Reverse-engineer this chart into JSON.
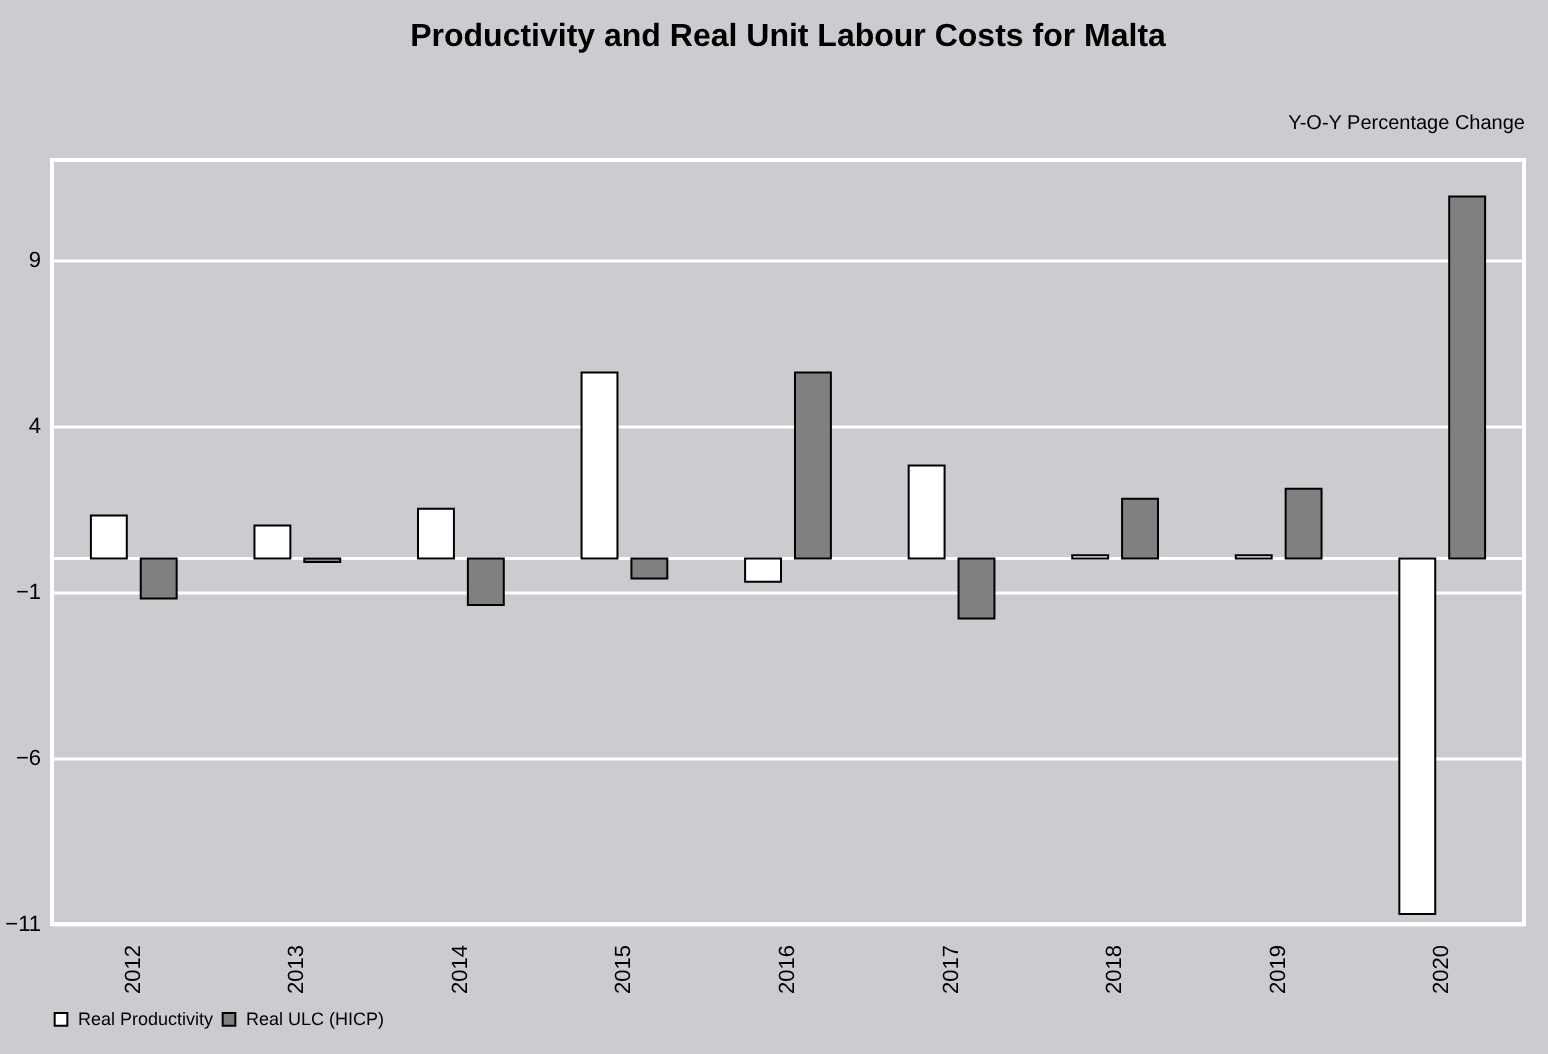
{
  "chart_data": {
    "type": "bar",
    "title": "Productivity and Real Unit Labour Costs for Malta",
    "ylabel": "Y-O-Y Percentage Change",
    "categories": [
      "2012",
      "2013",
      "2014",
      "2015",
      "2016",
      "2017",
      "2018",
      "2019",
      "2020"
    ],
    "series": [
      {
        "name": "Real Productivity",
        "color": "#ffffff",
        "values": [
          1.3,
          1.0,
          1.5,
          5.6,
          -0.7,
          2.8,
          0.1,
          0.1,
          -10.7
        ]
      },
      {
        "name": "Real ULC (HICP)",
        "color": "#808080",
        "values": [
          -1.2,
          -0.1,
          -1.4,
          -0.6,
          5.6,
          -1.8,
          1.8,
          2.1,
          10.9
        ]
      }
    ],
    "ylim": [
      -11,
      12
    ],
    "yticks": [
      -11,
      -6,
      -1,
      4,
      9
    ],
    "grid": "y",
    "legend": "bottom"
  }
}
